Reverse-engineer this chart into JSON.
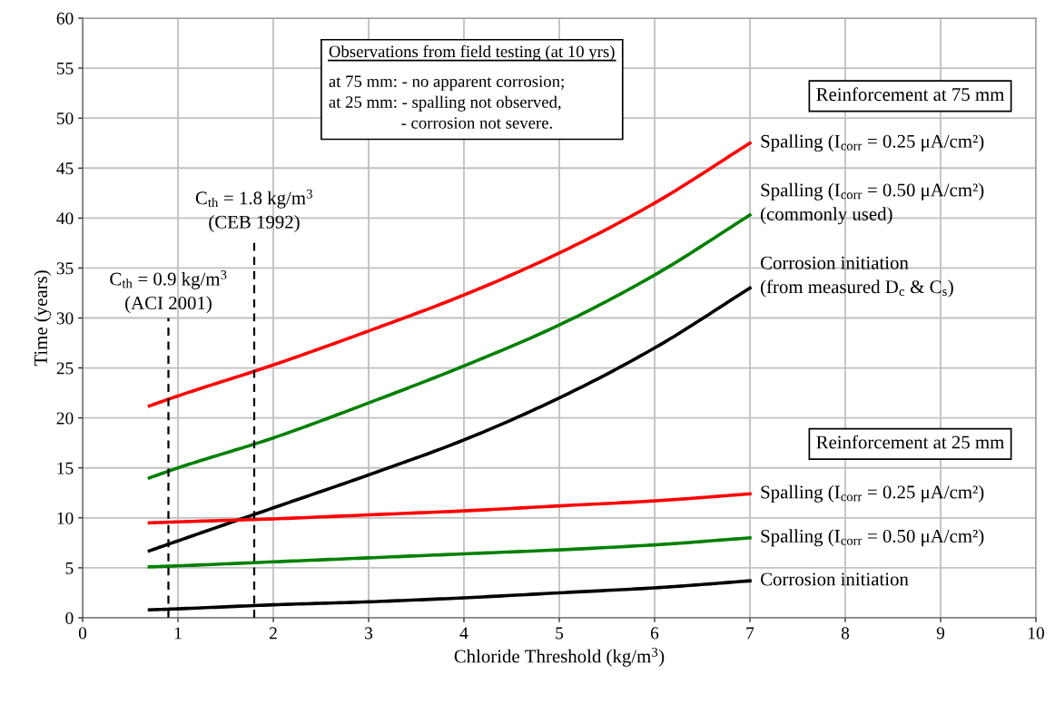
{
  "chart_data": {
    "type": "line",
    "xlabel": "Chloride Threshold (kg/m$^{3}$)",
    "ylabel": "Time (years)",
    "xlim": [
      0,
      10
    ],
    "ylim": [
      0,
      60
    ],
    "xticks": [
      0,
      1,
      2,
      3,
      4,
      5,
      6,
      7,
      8,
      9,
      10
    ],
    "yticks": [
      0,
      5,
      10,
      15,
      20,
      25,
      30,
      35,
      40,
      45,
      50,
      55,
      60
    ],
    "grid": true,
    "legend": false,
    "marker": "none",
    "x": [
      0.7,
      1,
      2,
      3,
      4,
      5,
      6,
      7
    ],
    "series": [
      {
        "name": "Spalling (I$_{corr}$ = 0.25 μA/cm²)",
        "color": "#ff0000",
        "values": [
          21.2,
          22.2,
          25.3,
          28.7,
          32.3,
          36.5,
          41.5,
          47.5
        ]
      },
      {
        "name": "Spalling (I$_{corr}$ = 0.50 μA/cm²)\n(commonly used)",
        "color": "#008000",
        "values": [
          14.0,
          15.0,
          18.0,
          21.5,
          25.2,
          29.3,
          34.3,
          40.3
        ]
      },
      {
        "name": "Corrosion initiation\n(from measured D$_{c}$ & C$_{s}$)",
        "color": "#000000",
        "values": [
          6.7,
          7.7,
          11.0,
          14.3,
          17.8,
          22.0,
          27.0,
          33.0
        ]
      },
      {
        "name": "Spalling (I$_{corr}$ = 0.25 μA/cm²)",
        "color": "#ff0000",
        "values": [
          9.5,
          9.6,
          9.9,
          10.3,
          10.7,
          11.2,
          11.7,
          12.4
        ]
      },
      {
        "name": "Spalling (I$_{corr}$ = 0.50 μA/cm²)",
        "color": "#008000",
        "values": [
          5.1,
          5.2,
          5.6,
          6.0,
          6.4,
          6.8,
          7.3,
          8.0
        ]
      },
      {
        "name": "Corrosion initiation",
        "color": "#000000",
        "values": [
          0.8,
          0.9,
          1.3,
          1.6,
          2.0,
          2.5,
          3.0,
          3.7
        ]
      }
    ],
    "ref_lines": [
      {
        "axis": "x",
        "value": 0.9,
        "label": "C$_{th}$ = 0.9 kg/m$^{3}$\n(ACI 2001)",
        "color": "#000000",
        "line_style": "dashed"
      },
      {
        "axis": "x",
        "value": 1.8,
        "label": "C$_{th}$ = 1.8 kg/m$^{3}$\n(CEB 1992)",
        "color": "#000000",
        "line_style": "dashed"
      }
    ],
    "annotations": [
      "Observations from field testing (at 10 yrs)",
      "at 75 mm: - no apparent corrosion;\nat 25 mm: - spalling not observed,\n                 - corrosion not severe.",
      "Reinforcement at 75 mm",
      "Reinforcement at 25 mm"
    ]
  }
}
